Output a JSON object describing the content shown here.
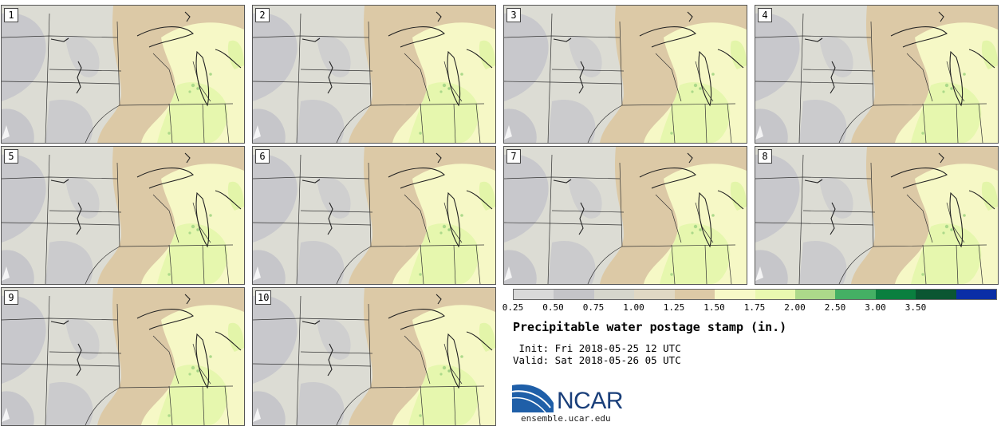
{
  "panels": [
    {
      "label": "1"
    },
    {
      "label": "2"
    },
    {
      "label": "3"
    },
    {
      "label": "4"
    },
    {
      "label": "5"
    },
    {
      "label": "6"
    },
    {
      "label": "7"
    },
    {
      "label": "8"
    },
    {
      "label": "9"
    },
    {
      "label": "10"
    }
  ],
  "colorbar": {
    "colors": [
      "#d9d9d9",
      "#c4c4c8",
      "#d6d6cc",
      "#e0d8c4",
      "#dcc9a6",
      "#f7f9c8",
      "#e9f8b0",
      "#acd98a",
      "#44b064",
      "#0a7f3f",
      "#0b5632",
      "#0a2ea6"
    ],
    "ticks": [
      "0.25",
      "0.50",
      "0.75",
      "1.00",
      "1.25",
      "1.50",
      "1.75",
      "2.00",
      "2.50",
      "3.00",
      "3.50"
    ]
  },
  "title": "Precipitable water postage stamp (in.)",
  "init": " Init: Fri 2018-05-25 12 UTC",
  "valid": "Valid: Sat 2018-05-26 05 UTC",
  "logo": {
    "text": "NCAR",
    "url": "ensemble.ucar.edu"
  }
}
